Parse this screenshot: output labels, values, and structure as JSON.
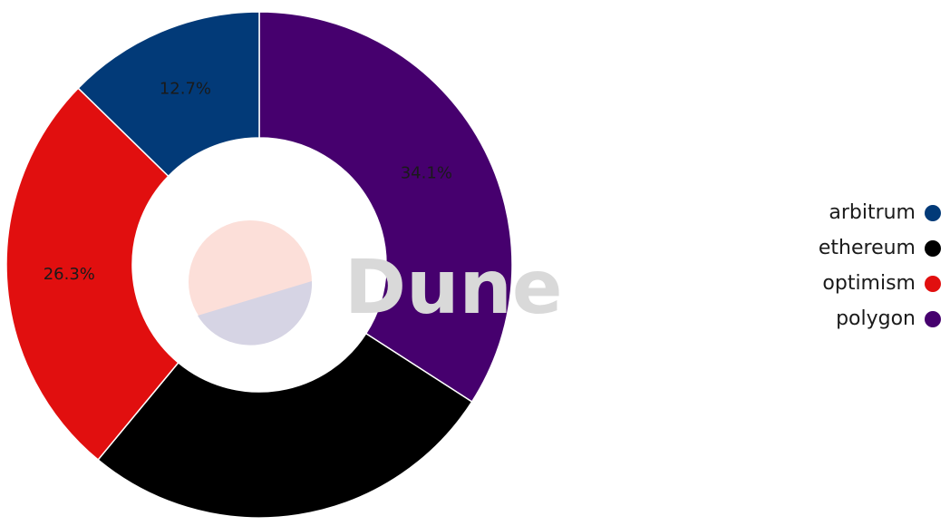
{
  "chart_data": {
    "type": "pie",
    "style": "donut",
    "title": "",
    "categories": [
      "arbitrum",
      "ethereum",
      "optimism",
      "polygon"
    ],
    "values": [
      12.7,
      26.9,
      26.3,
      34.1
    ],
    "value_labels": [
      "12.7%",
      "",
      "26.3%",
      "34.1%"
    ],
    "colors": {
      "arbitrum": "#023a78",
      "ethereum": "#000000",
      "optimism": "#e10f0f",
      "polygon": "#46006e"
    },
    "draw_order": [
      "polygon",
      "ethereum",
      "optimism",
      "arbitrum"
    ],
    "start": "12 o'clock",
    "direction": "clockwise",
    "legend_position": "right",
    "watermark": "Dune"
  },
  "legend": {
    "items": [
      {
        "label": "arbitrum",
        "color": "#023a78"
      },
      {
        "label": "ethereum",
        "color": "#000000"
      },
      {
        "label": "optimism",
        "color": "#e10f0f"
      },
      {
        "label": "polygon",
        "color": "#46006e"
      }
    ]
  }
}
